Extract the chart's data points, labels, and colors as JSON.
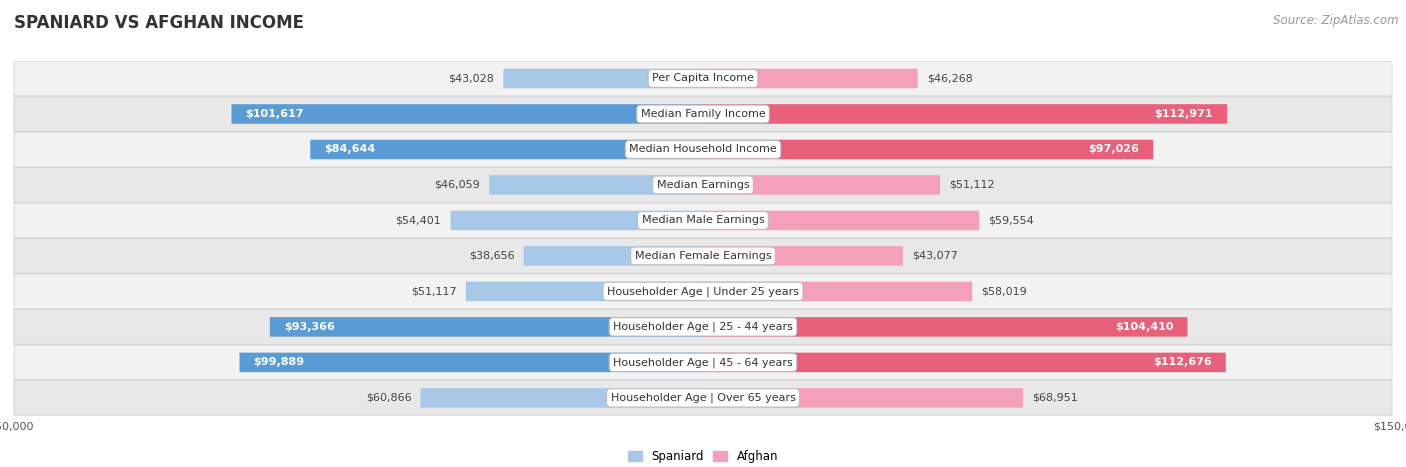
{
  "title": "SPANIARD VS AFGHAN INCOME",
  "source": "Source: ZipAtlas.com",
  "categories": [
    "Per Capita Income",
    "Median Family Income",
    "Median Household Income",
    "Median Earnings",
    "Median Male Earnings",
    "Median Female Earnings",
    "Householder Age | Under 25 years",
    "Householder Age | 25 - 44 years",
    "Householder Age | 45 - 64 years",
    "Householder Age | Over 65 years"
  ],
  "spaniard_values": [
    43028,
    101617,
    84644,
    46059,
    54401,
    38656,
    51117,
    93366,
    99889,
    60866
  ],
  "afghan_values": [
    46268,
    112971,
    97026,
    51112,
    59554,
    43077,
    58019,
    104410,
    112676,
    68951
  ],
  "spaniard_labels": [
    "$43,028",
    "$101,617",
    "$84,644",
    "$46,059",
    "$54,401",
    "$38,656",
    "$51,117",
    "$93,366",
    "$99,889",
    "$60,866"
  ],
  "afghan_labels": [
    "$46,268",
    "$112,971",
    "$97,026",
    "$51,112",
    "$59,554",
    "$43,077",
    "$58,019",
    "$104,410",
    "$112,676",
    "$68,951"
  ],
  "spaniard_color_light": "#a8c8e8",
  "spaniard_color_dark": "#5b9bd5",
  "afghan_color_light": "#f4a0b8",
  "afghan_color_dark": "#e8607a",
  "max_value": 150000,
  "row_bg_even": "#f2f2f2",
  "row_bg_odd": "#e8e8e8",
  "title_fontsize": 12,
  "source_fontsize": 8.5,
  "label_fontsize": 8,
  "category_fontsize": 8,
  "axis_fontsize": 8,
  "inside_label_threshold": 70000
}
